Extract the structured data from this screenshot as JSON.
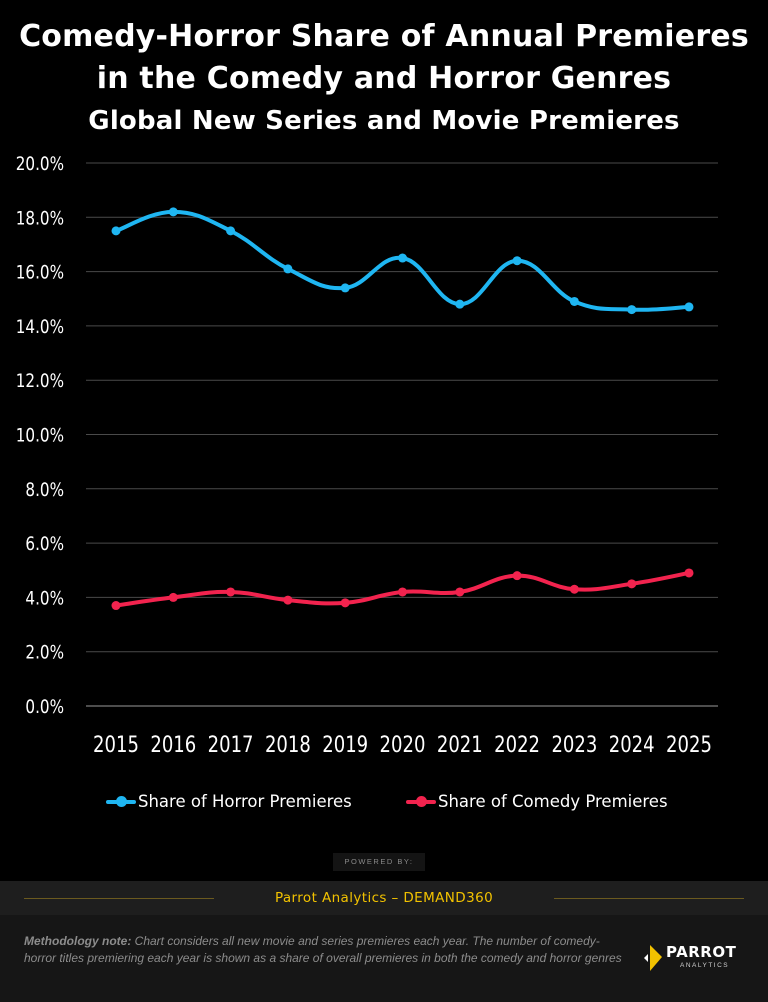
{
  "header": {
    "title_line1": "Comedy-Horror Share of Annual Premieres",
    "title_line2": "in the Comedy and Horror Genres",
    "subtitle": "Global New Series and Movie Premieres"
  },
  "chart_data": {
    "type": "line",
    "title": "Comedy-Horror Share of Annual Premieres in the Comedy and Horror Genres",
    "subtitle": "Global New Series and Movie Premieres",
    "xlabel": "",
    "ylabel": "",
    "categories": [
      "2015",
      "2016",
      "2017",
      "2018",
      "2019",
      "2020",
      "2021",
      "2022",
      "2023",
      "2024",
      "2025"
    ],
    "y_ticks": [
      "0.0%",
      "2.0%",
      "4.0%",
      "6.0%",
      "8.0%",
      "10.0%",
      "12.0%",
      "14.0%",
      "16.0%",
      "18.0%",
      "20.0%"
    ],
    "ylim": [
      0,
      20
    ],
    "grid": true,
    "legend_position": "bottom",
    "series": [
      {
        "name": "Share of Horror Premieres",
        "color": "#1fb6f2",
        "values": [
          17.5,
          18.2,
          17.5,
          16.1,
          15.4,
          16.5,
          14.8,
          16.4,
          14.9,
          14.6,
          14.7
        ]
      },
      {
        "name": "Share of Comedy Premieres",
        "color": "#f2234e",
        "values": [
          3.7,
          4.0,
          4.2,
          3.9,
          3.8,
          4.2,
          4.2,
          4.8,
          4.3,
          4.5,
          4.9
        ]
      }
    ]
  },
  "footer": {
    "powered_by": "POWERED BY:",
    "source": "Parrot Analytics – DEMAND360",
    "methodology_label": "Methodology note:",
    "methodology_text": " Chart considers all new movie and series premieres each year.  The number of comedy-horror titles premiering each year is shown as a share of overall premieres in both the comedy and horror genres",
    "logo_word": "PARROT",
    "logo_sub": "ANALYTICS",
    "logo_color": "#f2c200"
  }
}
